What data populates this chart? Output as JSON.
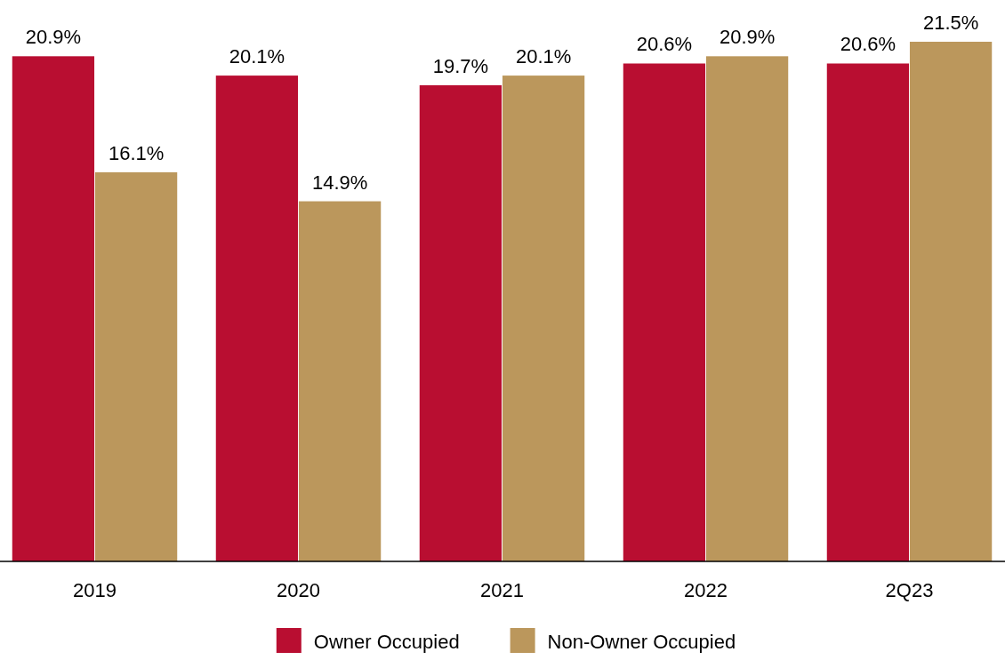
{
  "chart_data": {
    "type": "bar",
    "categories": [
      "2019",
      "2020",
      "2021",
      "2022",
      "2Q23"
    ],
    "series": [
      {
        "name": "Owner Occupied",
        "color": "#b90e31",
        "values": [
          20.9,
          20.1,
          19.7,
          20.6,
          20.6
        ],
        "value_labels": [
          "20.9%",
          "20.1%",
          "19.7%",
          "20.6%",
          "20.6%"
        ]
      },
      {
        "name": "Non-Owner Occupied",
        "color": "#bb975c",
        "values": [
          16.1,
          14.9,
          20.1,
          20.9,
          21.5
        ],
        "value_labels": [
          "16.1%",
          "14.9%",
          "20.1%",
          "20.9%",
          "21.5%"
        ]
      }
    ],
    "legend": "bottom"
  }
}
